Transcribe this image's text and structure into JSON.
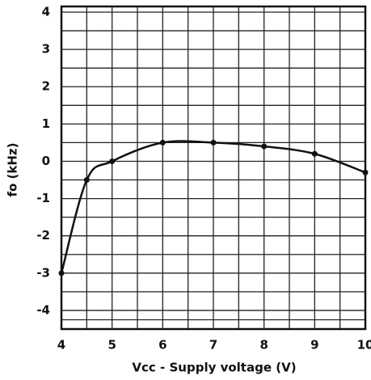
{
  "chart_data": {
    "type": "line",
    "xlabel": "Vcc - Supply voltage (V)",
    "ylabel": "fo (kHz)",
    "x": [
      4,
      4.5,
      5,
      6,
      7,
      8,
      9,
      10
    ],
    "series": [
      {
        "color": "#111111",
        "values": [
          -3,
          -0.5,
          0,
          0.5,
          0.5,
          0.4,
          0.2,
          -0.3
        ]
      }
    ],
    "xlim": [
      4,
      10
    ],
    "xticks": [
      4,
      5,
      6,
      7,
      8,
      9,
      10
    ],
    "ylim": [
      -4.5,
      4
    ],
    "yticks": [
      -4,
      -3,
      -2,
      -1,
      0,
      1,
      2,
      3,
      4
    ],
    "grid": true
  }
}
